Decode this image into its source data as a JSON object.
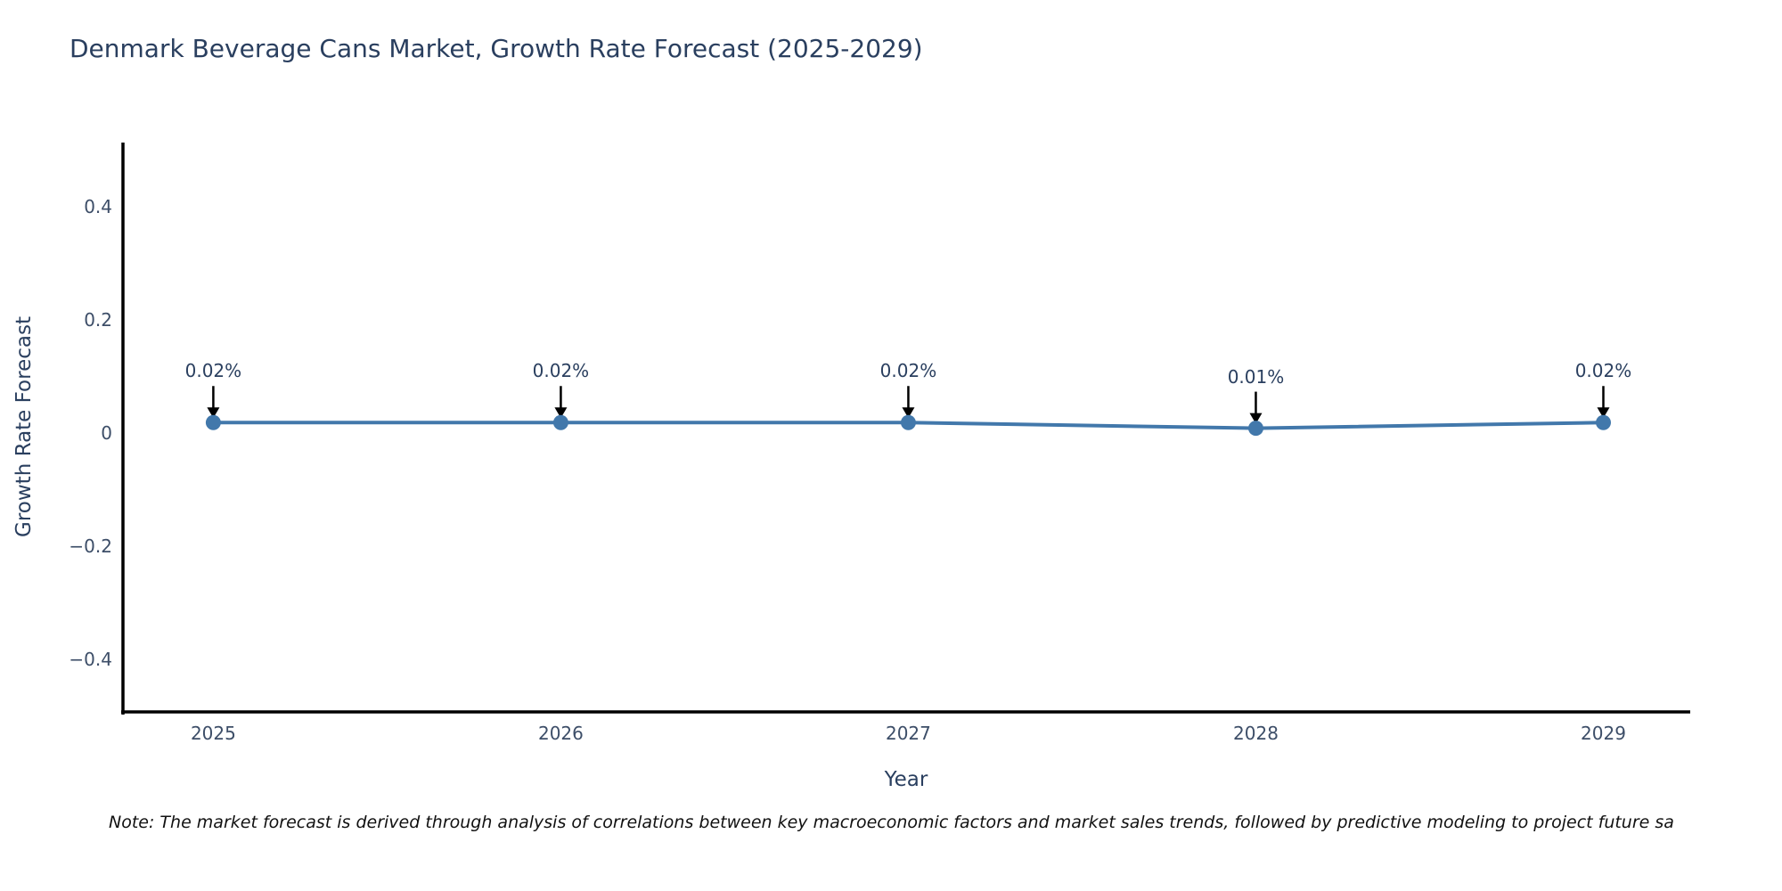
{
  "title": "Denmark Beverage Cans Market, Growth Rate Forecast (2025-2029)",
  "note": "Note: The market forecast is derived through analysis of correlations between key macroeconomic factors and market sales trends, followed by predictive modeling to project future sa",
  "chart_data": {
    "type": "line",
    "title": "Denmark Beverage Cans Market, Growth Rate Forecast (2025-2029)",
    "x": [
      2025,
      2026,
      2027,
      2028,
      2029
    ],
    "y": [
      0.02,
      0.02,
      0.02,
      0.01,
      0.02
    ],
    "annotations": [
      "0.02%",
      "0.02%",
      "0.02%",
      "0.01%",
      "0.02%"
    ],
    "xlabel": "Year",
    "ylabel": "Growth Rate Forecast",
    "xlim": [
      2024.74,
      2029.25
    ],
    "ylim": [
      -0.49,
      0.515
    ],
    "xtick_values": [
      2025,
      2026,
      2027,
      2028,
      2029
    ],
    "xtick_labels": [
      "2025",
      "2026",
      "2027",
      "2028",
      "2029"
    ],
    "ytick_values": [
      0.4,
      0.2,
      0,
      -0.2,
      -0.4
    ],
    "ytick_labels": [
      "0.4",
      "0.2",
      "0",
      "−0.2",
      "−0.4"
    ],
    "grid": false,
    "legend": false,
    "line_color": "#4278ab",
    "marker_color": "#4278ab",
    "arrow_color": "#000000",
    "axis_color": "#000000",
    "text_color": "#2a3f5f"
  }
}
